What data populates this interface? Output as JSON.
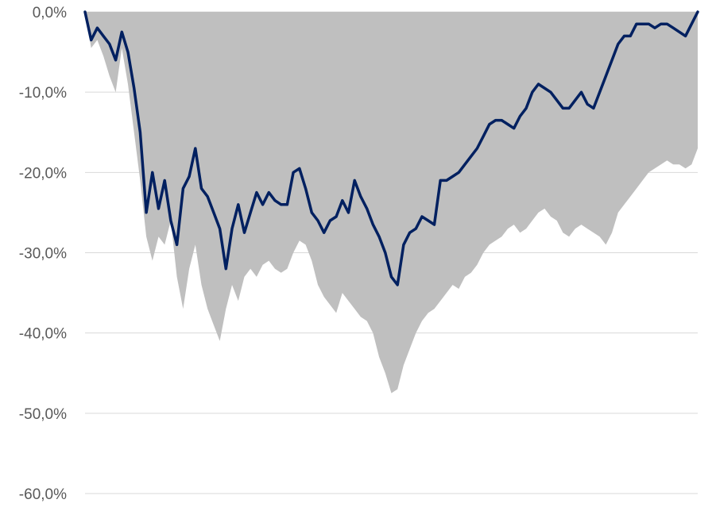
{
  "chart_data": {
    "type": "area",
    "title": "",
    "xlabel": "",
    "ylabel": "",
    "ylim": [
      -60,
      0
    ],
    "grid": true,
    "yticks": [
      {
        "value": 0,
        "label": "0,0%"
      },
      {
        "value": -10,
        "label": "-10,0%"
      },
      {
        "value": -20,
        "label": "-20,0%"
      },
      {
        "value": -30,
        "label": "-30,0%"
      },
      {
        "value": -40,
        "label": "-40,0%"
      },
      {
        "value": -50,
        "label": "-50,0%"
      },
      {
        "value": -60,
        "label": "-60,0%"
      }
    ],
    "x": [
      0,
      1,
      2,
      3,
      4,
      5,
      6,
      7,
      8,
      9,
      10,
      11,
      12,
      13,
      14,
      15,
      16,
      17,
      18,
      19,
      20,
      21,
      22,
      23,
      24,
      25,
      26,
      27,
      28,
      29,
      30,
      31,
      32,
      33,
      34,
      35,
      36,
      37,
      38,
      39,
      40,
      41,
      42,
      43,
      44,
      45,
      46,
      47,
      48,
      49,
      50,
      51,
      52,
      53,
      54,
      55,
      56,
      57,
      58,
      59,
      60,
      61,
      62,
      63,
      64,
      65,
      66,
      67,
      68,
      69,
      70,
      71,
      72,
      73,
      74,
      75,
      76,
      77,
      78,
      79,
      80,
      81,
      82,
      83,
      84,
      85,
      86,
      87,
      88,
      89,
      90,
      91,
      92,
      93,
      94,
      95,
      96,
      97,
      98,
      99,
      100
    ],
    "series": [
      {
        "style": "area",
        "color": "#bfbfbf",
        "values": [
          0,
          -4.5,
          -3.5,
          -5.5,
          -8,
          -10,
          -4.5,
          -9,
          -15,
          -21,
          -28,
          -31,
          -28,
          -29,
          -26,
          -33,
          -37,
          -32,
          -29,
          -34,
          -37,
          -39,
          -41,
          -37,
          -34,
          -36,
          -33,
          -32,
          -33,
          -31.5,
          -31,
          -32,
          -32.5,
          -32,
          -30,
          -28.5,
          -29,
          -31,
          -34,
          -35.5,
          -36.5,
          -37.5,
          -35,
          -36,
          -37,
          -38,
          -38.5,
          -40,
          -43,
          -45,
          -47.5,
          -47,
          -44,
          -42,
          -40,
          -38.5,
          -37.5,
          -37,
          -36,
          -35,
          -34,
          -34.5,
          -33,
          -32.5,
          -31.5,
          -30,
          -29,
          -28.5,
          -28,
          -27,
          -26.5,
          -27.5,
          -27,
          -26,
          -25,
          -24.5,
          -25.5,
          -26,
          -27.5,
          -28,
          -27,
          -26.5,
          -27,
          -27.5,
          -28,
          -29,
          -27.5,
          -25,
          -24,
          -23,
          -22,
          -21,
          -20,
          -19.5,
          -19,
          -18.5,
          -19,
          -19,
          -19.5,
          -19,
          -17
        ]
      },
      {
        "style": "line",
        "color": "#002060",
        "values": [
          0,
          -3.5,
          -2,
          -3,
          -4,
          -6,
          -2.5,
          -5,
          -9.5,
          -15,
          -25,
          -20,
          -24.5,
          -21,
          -26,
          -29,
          -22,
          -20.5,
          -17,
          -22,
          -23,
          -25,
          -27,
          -32,
          -27,
          -24,
          -27.5,
          -25,
          -22.5,
          -24,
          -22.5,
          -23.5,
          -24,
          -24,
          -20,
          -19.5,
          -22,
          -25,
          -26,
          -27.5,
          -26,
          -25.5,
          -23.5,
          -25,
          -21,
          -23,
          -24.5,
          -26.5,
          -28,
          -30,
          -33,
          -34,
          -29,
          -27.5,
          -27,
          -25.5,
          -26,
          -26.5,
          -21,
          -21,
          -20.5,
          -20,
          -19,
          -18,
          -17,
          -15.5,
          -14,
          -13.5,
          -13.5,
          -14,
          -14.5,
          -13,
          -12,
          -10,
          -9,
          -9.5,
          -10,
          -11,
          -12,
          -12,
          -11,
          -10,
          -11.5,
          -12,
          -10,
          -8,
          -6,
          -4,
          -3,
          -3,
          -1.5,
          -1.5,
          -1.5,
          -2,
          -1.5,
          -1.5,
          -2,
          -2.5,
          -3,
          -1.5,
          0
        ]
      }
    ]
  }
}
